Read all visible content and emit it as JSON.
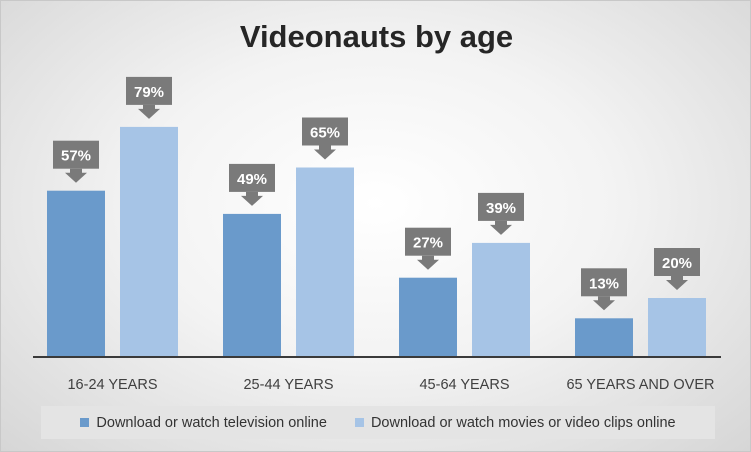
{
  "chart_data": {
    "type": "bar",
    "title": "Videonauts by age",
    "categories": [
      "16-24 YEARS",
      "25-44 YEARS",
      "45-64 YEARS",
      "65 YEARS AND OVER"
    ],
    "series": [
      {
        "name": "Download or watch television online",
        "values": [
          57,
          49,
          27,
          13
        ],
        "color": "#6a9acb"
      },
      {
        "name": "Download or watch movies or video clips online",
        "values": [
          79,
          65,
          39,
          20
        ],
        "color": "#a6c4e6"
      }
    ],
    "value_suffix": "%",
    "ylim": [
      0,
      100
    ],
    "grid": false,
    "legend_position": "bottom",
    "callout_color": "#7a7a7a"
  }
}
